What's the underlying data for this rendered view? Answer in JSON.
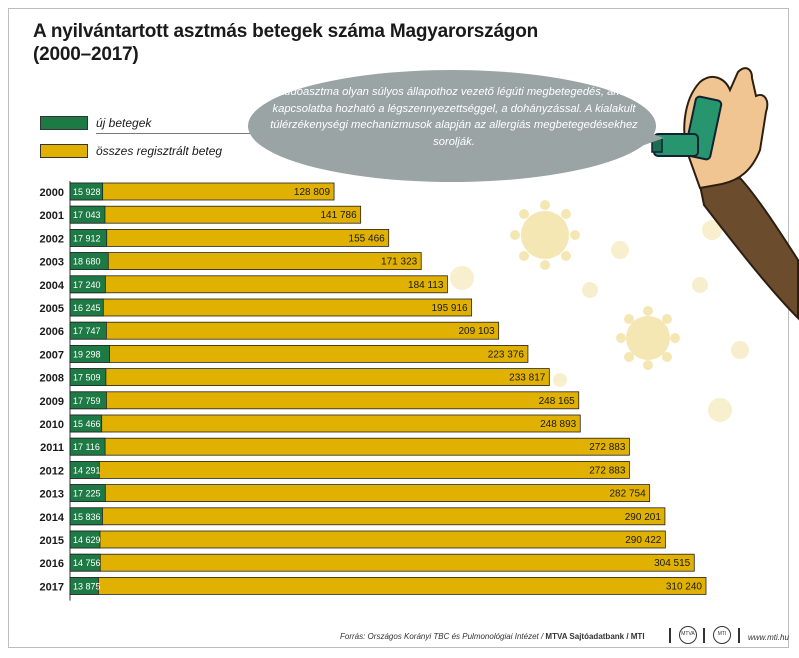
{
  "title": "A nyilvántartott asztmás betegek száma Magyarországon (2000–2017)",
  "legend": {
    "new_patients": "új betegek",
    "all_registered": "összes regisztrált beteg"
  },
  "info_text": "A tüdőasztma olyan súlyos állapothoz vezető légúti megbetegedés, amely kapcsolatba hozható a légszennyezettséggel, a dohányzással. A kialakult túlérzékenységi mechanizmusok alapján az allergiás megbetegedésekhez sorolják.",
  "colors": {
    "new_patients": "#1e7a45",
    "all_registered": "#e0b100",
    "bubble": "#9aa4a4",
    "sleeve": "#6b4d2e",
    "skin": "#f0c592",
    "inhaler": "#27956e",
    "virus": "#f4e6b0"
  },
  "footer": {
    "source": "Forrás: Országos Korányi TBC és Pulmonológiai Intézet",
    "credit": "MTVA Sajtóadatbank / MTI",
    "url": "www.mti.hu"
  },
  "chart_data": {
    "type": "bar",
    "orientation": "horizontal",
    "categories": [
      "2000",
      "2001",
      "2002",
      "2003",
      "2004",
      "2005",
      "2006",
      "2007",
      "2008",
      "2009",
      "2010",
      "2011",
      "2012",
      "2013",
      "2014",
      "2015",
      "2016",
      "2017"
    ],
    "series": [
      {
        "name": "új betegek",
        "values": [
          15928,
          17043,
          17912,
          18680,
          17240,
          16245,
          17747,
          19298,
          17509,
          17759,
          15466,
          17116,
          14291,
          17225,
          15836,
          14629,
          14756,
          13875
        ],
        "labels": [
          "15 928",
          "17 043",
          "17 912",
          "18 680",
          "17 240",
          "16 245",
          "17 747",
          "19 298",
          "17 509",
          "17 759",
          "15 466",
          "17 116",
          "14 291",
          "17 225",
          "15 836",
          "14 629",
          "14 756",
          "13 875"
        ]
      },
      {
        "name": "összes regisztrált beteg",
        "values": [
          128809,
          141786,
          155466,
          171323,
          184113,
          195916,
          209103,
          223376,
          233817,
          248165,
          248893,
          272883,
          272883,
          282754,
          290201,
          290422,
          304515,
          310240
        ],
        "labels": [
          "128 809",
          "141 786",
          "155 466",
          "171 323",
          "184 113",
          "195 916",
          "209 103",
          "223 376",
          "233 817",
          "248 165",
          "248 893",
          "272 883",
          "272 883",
          "282 754",
          "290 201",
          "290 422",
          "304 515",
          "310 240"
        ]
      }
    ]
  }
}
